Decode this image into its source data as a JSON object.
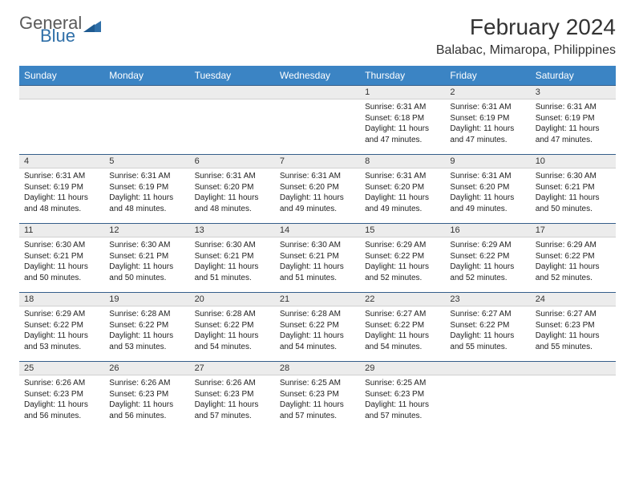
{
  "brand": {
    "general": "General",
    "blue": "Blue"
  },
  "title": "February 2024",
  "location": "Balabac, Mimaropa, Philippines",
  "colors": {
    "header_bg": "#3b84c4",
    "header_text": "#ffffff",
    "daynum_bg": "#ececec",
    "row_rule": "#355e8a",
    "text": "#222222",
    "logo_gray": "#5a5a5a",
    "logo_blue": "#2f6fa8"
  },
  "layout": {
    "columns": 7,
    "rows": 5,
    "first_day_column": 4
  },
  "weekdays": [
    "Sunday",
    "Monday",
    "Tuesday",
    "Wednesday",
    "Thursday",
    "Friday",
    "Saturday"
  ],
  "days": [
    {
      "n": "1",
      "sunrise": "Sunrise: 6:31 AM",
      "sunset": "Sunset: 6:18 PM",
      "d1": "Daylight: 11 hours",
      "d2": "and 47 minutes."
    },
    {
      "n": "2",
      "sunrise": "Sunrise: 6:31 AM",
      "sunset": "Sunset: 6:19 PM",
      "d1": "Daylight: 11 hours",
      "d2": "and 47 minutes."
    },
    {
      "n": "3",
      "sunrise": "Sunrise: 6:31 AM",
      "sunset": "Sunset: 6:19 PM",
      "d1": "Daylight: 11 hours",
      "d2": "and 47 minutes."
    },
    {
      "n": "4",
      "sunrise": "Sunrise: 6:31 AM",
      "sunset": "Sunset: 6:19 PM",
      "d1": "Daylight: 11 hours",
      "d2": "and 48 minutes."
    },
    {
      "n": "5",
      "sunrise": "Sunrise: 6:31 AM",
      "sunset": "Sunset: 6:19 PM",
      "d1": "Daylight: 11 hours",
      "d2": "and 48 minutes."
    },
    {
      "n": "6",
      "sunrise": "Sunrise: 6:31 AM",
      "sunset": "Sunset: 6:20 PM",
      "d1": "Daylight: 11 hours",
      "d2": "and 48 minutes."
    },
    {
      "n": "7",
      "sunrise": "Sunrise: 6:31 AM",
      "sunset": "Sunset: 6:20 PM",
      "d1": "Daylight: 11 hours",
      "d2": "and 49 minutes."
    },
    {
      "n": "8",
      "sunrise": "Sunrise: 6:31 AM",
      "sunset": "Sunset: 6:20 PM",
      "d1": "Daylight: 11 hours",
      "d2": "and 49 minutes."
    },
    {
      "n": "9",
      "sunrise": "Sunrise: 6:31 AM",
      "sunset": "Sunset: 6:20 PM",
      "d1": "Daylight: 11 hours",
      "d2": "and 49 minutes."
    },
    {
      "n": "10",
      "sunrise": "Sunrise: 6:30 AM",
      "sunset": "Sunset: 6:21 PM",
      "d1": "Daylight: 11 hours",
      "d2": "and 50 minutes."
    },
    {
      "n": "11",
      "sunrise": "Sunrise: 6:30 AM",
      "sunset": "Sunset: 6:21 PM",
      "d1": "Daylight: 11 hours",
      "d2": "and 50 minutes."
    },
    {
      "n": "12",
      "sunrise": "Sunrise: 6:30 AM",
      "sunset": "Sunset: 6:21 PM",
      "d1": "Daylight: 11 hours",
      "d2": "and 50 minutes."
    },
    {
      "n": "13",
      "sunrise": "Sunrise: 6:30 AM",
      "sunset": "Sunset: 6:21 PM",
      "d1": "Daylight: 11 hours",
      "d2": "and 51 minutes."
    },
    {
      "n": "14",
      "sunrise": "Sunrise: 6:30 AM",
      "sunset": "Sunset: 6:21 PM",
      "d1": "Daylight: 11 hours",
      "d2": "and 51 minutes."
    },
    {
      "n": "15",
      "sunrise": "Sunrise: 6:29 AM",
      "sunset": "Sunset: 6:22 PM",
      "d1": "Daylight: 11 hours",
      "d2": "and 52 minutes."
    },
    {
      "n": "16",
      "sunrise": "Sunrise: 6:29 AM",
      "sunset": "Sunset: 6:22 PM",
      "d1": "Daylight: 11 hours",
      "d2": "and 52 minutes."
    },
    {
      "n": "17",
      "sunrise": "Sunrise: 6:29 AM",
      "sunset": "Sunset: 6:22 PM",
      "d1": "Daylight: 11 hours",
      "d2": "and 52 minutes."
    },
    {
      "n": "18",
      "sunrise": "Sunrise: 6:29 AM",
      "sunset": "Sunset: 6:22 PM",
      "d1": "Daylight: 11 hours",
      "d2": "and 53 minutes."
    },
    {
      "n": "19",
      "sunrise": "Sunrise: 6:28 AM",
      "sunset": "Sunset: 6:22 PM",
      "d1": "Daylight: 11 hours",
      "d2": "and 53 minutes."
    },
    {
      "n": "20",
      "sunrise": "Sunrise: 6:28 AM",
      "sunset": "Sunset: 6:22 PM",
      "d1": "Daylight: 11 hours",
      "d2": "and 54 minutes."
    },
    {
      "n": "21",
      "sunrise": "Sunrise: 6:28 AM",
      "sunset": "Sunset: 6:22 PM",
      "d1": "Daylight: 11 hours",
      "d2": "and 54 minutes."
    },
    {
      "n": "22",
      "sunrise": "Sunrise: 6:27 AM",
      "sunset": "Sunset: 6:22 PM",
      "d1": "Daylight: 11 hours",
      "d2": "and 54 minutes."
    },
    {
      "n": "23",
      "sunrise": "Sunrise: 6:27 AM",
      "sunset": "Sunset: 6:22 PM",
      "d1": "Daylight: 11 hours",
      "d2": "and 55 minutes."
    },
    {
      "n": "24",
      "sunrise": "Sunrise: 6:27 AM",
      "sunset": "Sunset: 6:23 PM",
      "d1": "Daylight: 11 hours",
      "d2": "and 55 minutes."
    },
    {
      "n": "25",
      "sunrise": "Sunrise: 6:26 AM",
      "sunset": "Sunset: 6:23 PM",
      "d1": "Daylight: 11 hours",
      "d2": "and 56 minutes."
    },
    {
      "n": "26",
      "sunrise": "Sunrise: 6:26 AM",
      "sunset": "Sunset: 6:23 PM",
      "d1": "Daylight: 11 hours",
      "d2": "and 56 minutes."
    },
    {
      "n": "27",
      "sunrise": "Sunrise: 6:26 AM",
      "sunset": "Sunset: 6:23 PM",
      "d1": "Daylight: 11 hours",
      "d2": "and 57 minutes."
    },
    {
      "n": "28",
      "sunrise": "Sunrise: 6:25 AM",
      "sunset": "Sunset: 6:23 PM",
      "d1": "Daylight: 11 hours",
      "d2": "and 57 minutes."
    },
    {
      "n": "29",
      "sunrise": "Sunrise: 6:25 AM",
      "sunset": "Sunset: 6:23 PM",
      "d1": "Daylight: 11 hours",
      "d2": "and 57 minutes."
    }
  ]
}
